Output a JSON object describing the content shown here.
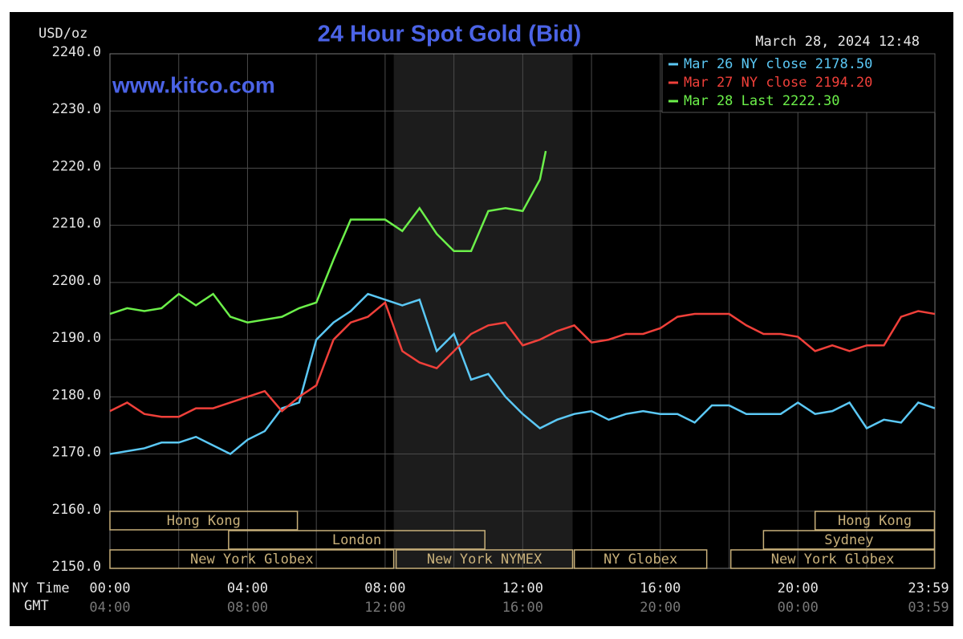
{
  "chart_data": {
    "type": "line",
    "title": "24 Hour Spot Gold (Bid)",
    "y_label": "USD/oz",
    "timestamp": "March 28, 2024 12:48",
    "watermark": "www.kitco.com",
    "x_label": "NY Time",
    "x2_label": "GMT",
    "xlim": [
      0,
      23.9833
    ],
    "ylim": [
      2150,
      2240
    ],
    "xticks": [
      {
        "value": 0,
        "label": "00:00"
      },
      {
        "value": 4,
        "label": "04:00"
      },
      {
        "value": 8,
        "label": "08:00"
      },
      {
        "value": 12,
        "label": "12:00"
      },
      {
        "value": 16,
        "label": "16:00"
      },
      {
        "value": 20,
        "label": "20:00"
      },
      {
        "value": 23.9833,
        "label": "23:59"
      }
    ],
    "x2ticks": [
      {
        "value": 0,
        "label": "04:00"
      },
      {
        "value": 4,
        "label": "08:00"
      },
      {
        "value": 8,
        "label": "12:00"
      },
      {
        "value": 12,
        "label": "16:00"
      },
      {
        "value": 16,
        "label": "20:00"
      },
      {
        "value": 20,
        "label": "00:00"
      },
      {
        "value": 23.9833,
        "label": "03:59"
      }
    ],
    "xminor": [
      2,
      6,
      10,
      14,
      18,
      22
    ],
    "yticks": [
      {
        "value": 2150,
        "label": "2150.0"
      },
      {
        "value": 2160,
        "label": "2160.0"
      },
      {
        "value": 2170,
        "label": "2170.0"
      },
      {
        "value": 2180,
        "label": "2180.0"
      },
      {
        "value": 2190,
        "label": "2190.0"
      },
      {
        "value": 2200,
        "label": "2200.0"
      },
      {
        "value": 2210,
        "label": "2210.0"
      },
      {
        "value": 2220,
        "label": "2220.0"
      },
      {
        "value": 2230,
        "label": "2230.0"
      },
      {
        "value": 2240,
        "label": "2240.0"
      }
    ],
    "grid": true,
    "shaded_range": [
      8.25,
      13.45
    ],
    "sessions": [
      {
        "label": "Hong Kong",
        "start": 0,
        "end": 5.45,
        "row": 0
      },
      {
        "label": "Hong Kong",
        "start": 20.5,
        "end": 23.97,
        "row": 0
      },
      {
        "label": "London",
        "start": 3.45,
        "end": 10.9,
        "row": 1
      },
      {
        "label": "Sydney",
        "start": 19,
        "end": 23.97,
        "row": 1
      },
      {
        "label": "New York Globex",
        "start": 0,
        "end": 8.25,
        "row": 2
      },
      {
        "label": "New York NYMEX",
        "start": 8.32,
        "end": 13.45,
        "row": 2
      },
      {
        "label": "NY Globex",
        "start": 13.5,
        "end": 17.35,
        "row": 2
      },
      {
        "label": "New York Globex",
        "start": 18.05,
        "end": 23.97,
        "row": 2
      }
    ],
    "series": [
      {
        "name": "Mar 26 NY close 2178.50",
        "color": "#5bc8f5",
        "x": [
          0,
          0.5,
          1,
          1.5,
          2,
          2.5,
          3,
          3.5,
          4,
          4.5,
          5,
          5.5,
          6,
          6.5,
          7,
          7.5,
          8,
          8.5,
          9,
          9.5,
          10,
          10.5,
          11,
          11.5,
          12,
          12.5,
          13,
          13.5,
          14,
          14.5,
          15,
          15.5,
          16,
          16.5,
          17,
          17.5,
          18,
          18.5,
          19,
          19.5,
          20,
          20.5,
          21,
          21.5,
          22,
          22.5,
          23,
          23.5,
          23.98
        ],
        "values": [
          2170,
          2170.5,
          2171,
          2172,
          2172,
          2173,
          2171.5,
          2170,
          2172.5,
          2174,
          2178,
          2179,
          2190,
          2193,
          2195,
          2198,
          2197,
          2196,
          2197,
          2188,
          2191,
          2183,
          2184,
          2180,
          2177,
          2174.5,
          2176,
          2177,
          2177.5,
          2176,
          2177,
          2177.5,
          2177,
          2177,
          2175.5,
          2178.5,
          2178.5,
          2177,
          2177,
          2177,
          2179,
          2177,
          2177.5,
          2179,
          2174.5,
          2176,
          2175.5,
          2179,
          2178
        ]
      },
      {
        "name": "Mar 27 NY close 2194.20",
        "color": "#f0403a",
        "x": [
          0,
          0.5,
          1,
          1.5,
          2,
          2.5,
          3,
          3.5,
          4,
          4.5,
          5,
          5.5,
          6,
          6.5,
          7,
          7.5,
          8,
          8.5,
          9,
          9.5,
          10,
          10.5,
          11,
          11.5,
          12,
          12.5,
          13,
          13.5,
          14,
          14.5,
          15,
          15.5,
          16,
          16.5,
          17,
          17.5,
          18,
          18.5,
          19,
          19.5,
          20,
          20.5,
          21,
          21.5,
          22,
          22.5,
          23,
          23.5,
          23.98
        ],
        "values": [
          2177.5,
          2179,
          2177,
          2176.5,
          2176.5,
          2178,
          2178,
          2179,
          2180,
          2181,
          2177.5,
          2180,
          2182,
          2190,
          2193,
          2194,
          2196.5,
          2188,
          2186,
          2185,
          2188,
          2191,
          2192.5,
          2193,
          2189,
          2190,
          2191.5,
          2192.5,
          2189.5,
          2190,
          2191,
          2191,
          2192,
          2194,
          2194.5,
          2194.5,
          2194.5,
          2192.5,
          2191,
          2191,
          2190.5,
          2188,
          2189,
          2188,
          2189,
          2189,
          2194,
          2195,
          2194.5
        ]
      },
      {
        "name": "Mar 28 Last 2222.30",
        "color": "#6cf04a",
        "x": [
          0,
          0.5,
          1,
          1.5,
          2,
          2.5,
          3,
          3.5,
          4,
          4.5,
          5,
          5.5,
          6,
          6.5,
          7,
          7.5,
          8,
          8.5,
          9,
          9.5,
          10,
          10.5,
          11,
          11.5,
          12,
          12.5,
          12.67
        ],
        "values": [
          2194.5,
          2195.5,
          2195,
          2195.5,
          2198,
          2196,
          2198,
          2194,
          2193,
          2193.5,
          2194,
          2195.5,
          2196.5,
          2204,
          2211,
          2211,
          2211,
          2209,
          2213,
          2208.5,
          2205.5,
          2205.5,
          2212.5,
          2213,
          2212.5,
          2218,
          2223
        ]
      }
    ]
  }
}
